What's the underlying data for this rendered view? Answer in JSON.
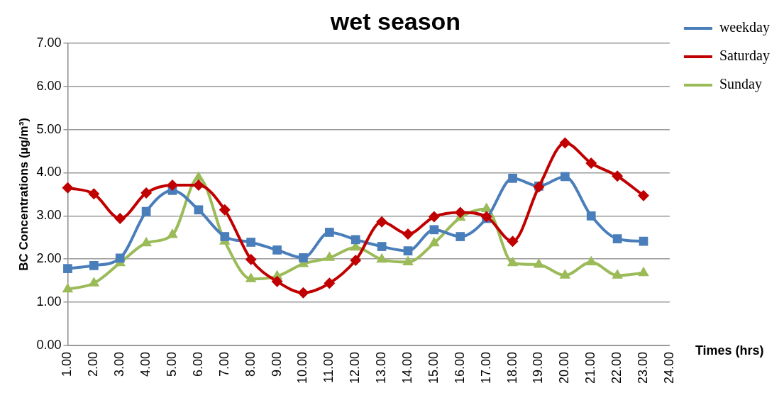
{
  "chart_data": {
    "type": "line",
    "title": "wet season",
    "xlabel": "Times (hrs)",
    "ylabel": "BC Concentrations (µg/m³)",
    "categories": [
      "1.00",
      "2.00",
      "3.00",
      "4.00",
      "5.00",
      "6.00",
      "7.00",
      "8.00",
      "9.00",
      "10.00",
      "11.00",
      "12.00",
      "13.00",
      "14.00",
      "15.00",
      "16.00",
      "17.00",
      "18.00",
      "19.00",
      "20.00",
      "21.00",
      "22.00",
      "23.00",
      "24.00"
    ],
    "series": [
      {
        "name": "weekday",
        "color": "#4a7ebb",
        "marker": "square",
        "values": [
          1.78,
          1.85,
          2.02,
          3.1,
          3.59,
          3.14,
          2.52,
          2.39,
          2.21,
          2.03,
          2.62,
          2.45,
          2.29,
          2.19,
          2.68,
          2.52,
          2.94,
          3.87,
          3.69,
          3.91,
          3.0,
          2.47,
          2.41,
          null
        ]
      },
      {
        "name": "Saturday",
        "color": "#c00000",
        "marker": "diamond",
        "values": [
          3.65,
          3.51,
          2.94,
          3.53,
          3.71,
          3.71,
          3.14,
          1.99,
          1.48,
          1.22,
          1.44,
          1.97,
          2.86,
          2.58,
          2.98,
          3.08,
          2.98,
          2.41,
          3.67,
          4.69,
          4.22,
          3.92,
          3.47,
          null
        ]
      },
      {
        "name": "Sunday",
        "color": "#9bbb59",
        "marker": "triangle",
        "values": [
          1.3,
          1.44,
          1.91,
          2.37,
          2.56,
          3.89,
          2.41,
          1.54,
          1.6,
          1.89,
          2.03,
          2.27,
          1.99,
          1.93,
          2.37,
          2.96,
          3.16,
          1.91,
          1.87,
          1.62,
          1.93,
          1.62,
          1.68,
          null
        ]
      }
    ],
    "ylim": [
      0,
      7
    ],
    "yticks": [
      {
        "value": 0,
        "label": "0.00"
      },
      {
        "value": 1,
        "label": "1.00"
      },
      {
        "value": 2,
        "label": "2.00"
      },
      {
        "value": 3,
        "label": "3.00"
      },
      {
        "value": 4,
        "label": "4.00"
      },
      {
        "value": 5,
        "label": "5.00"
      },
      {
        "value": 6,
        "label": "6.00"
      },
      {
        "value": 7,
        "label": "7.00"
      }
    ],
    "grid": "y",
    "legend": "top right",
    "line_style": "solid"
  }
}
